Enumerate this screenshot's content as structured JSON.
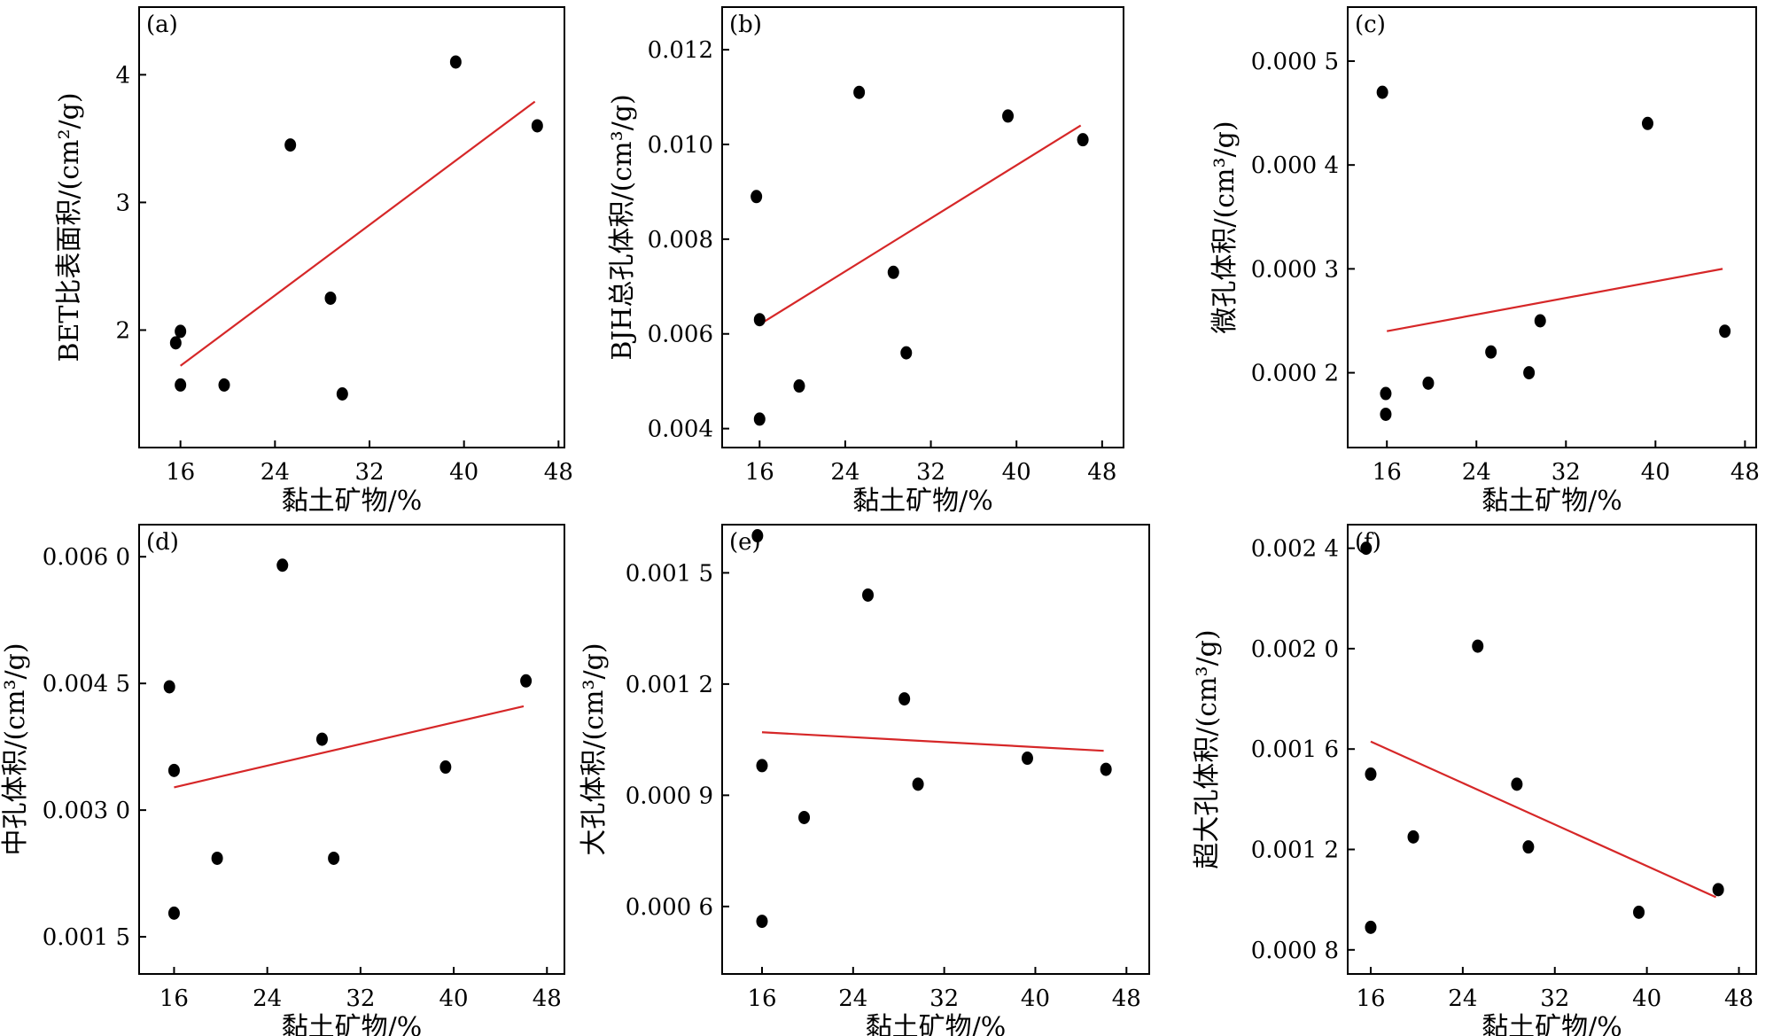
{
  "colors": {
    "points": "#000000",
    "fit_line": "#d62728",
    "frame": "#000000"
  },
  "chart_data": [
    {
      "panel": "(a)",
      "type": "scatter",
      "xlabel": "黏土矿物/%",
      "ylabel": "BET比表面积/(cm²/g)",
      "xticks": [
        16,
        24,
        32,
        40,
        48
      ],
      "xtick_labels": [
        "16",
        "24",
        "32",
        "40",
        "48"
      ],
      "yticks": [
        2,
        3,
        4
      ],
      "ytick_labels": [
        "2",
        "3",
        "4"
      ],
      "xlim": [
        12.5,
        48.5
      ],
      "ylim": [
        1.08,
        4.53
      ],
      "points": [
        [
          15.6,
          1.9
        ],
        [
          16.0,
          1.99
        ],
        [
          16.0,
          1.57
        ],
        [
          19.7,
          1.57
        ],
        [
          25.3,
          3.45
        ],
        [
          28.7,
          2.25
        ],
        [
          29.7,
          1.5
        ],
        [
          39.3,
          4.1
        ],
        [
          46.2,
          3.6
        ]
      ],
      "fit": [
        [
          16.0,
          1.72
        ],
        [
          46.0,
          3.79
        ]
      ]
    },
    {
      "panel": "(b)",
      "type": "scatter",
      "xlabel": "黏土矿物/%",
      "ylabel": "BJH总孔体积/(cm³/g)",
      "xticks": [
        16,
        24,
        32,
        40,
        48
      ],
      "xtick_labels": [
        "16",
        "24",
        "32",
        "40",
        "48"
      ],
      "yticks": [
        0.004,
        0.006,
        0.008,
        0.01,
        0.012
      ],
      "ytick_labels": [
        "0.004",
        "0.006",
        "0.008",
        "0.010",
        "0.012"
      ],
      "xlim": [
        12.5,
        50.0
      ],
      "ylim": [
        0.0036,
        0.0129
      ],
      "points": [
        [
          15.7,
          0.0089
        ],
        [
          16.0,
          0.0063
        ],
        [
          16.0,
          0.0042
        ],
        [
          19.7,
          0.0049
        ],
        [
          25.3,
          0.0111
        ],
        [
          28.5,
          0.0073
        ],
        [
          29.7,
          0.0056
        ],
        [
          39.2,
          0.0106
        ],
        [
          46.2,
          0.0101
        ]
      ],
      "fit": [
        [
          16.0,
          0.0062
        ],
        [
          46.0,
          0.0104
        ]
      ]
    },
    {
      "panel": "(c)",
      "type": "scatter",
      "xlabel": "黏土矿物/%",
      "ylabel": "微孔体积/(cm³/g)",
      "xticks": [
        16,
        24,
        32,
        40,
        48
      ],
      "xtick_labels": [
        "16",
        "24",
        "32",
        "40",
        "48"
      ],
      "yticks": [
        0.0002,
        0.0003,
        0.0004,
        0.0005
      ],
      "ytick_labels": [
        "0.000 2",
        "0.000 3",
        "0.000 4",
        "0.000 5"
      ],
      "xlim": [
        12.5,
        49.0
      ],
      "ylim": [
        0.000128,
        0.000552
      ],
      "points": [
        [
          15.6,
          0.00047
        ],
        [
          15.9,
          0.00018
        ],
        [
          15.9,
          0.00016
        ],
        [
          19.7,
          0.00019
        ],
        [
          25.3,
          0.00022
        ],
        [
          28.7,
          0.0002
        ],
        [
          29.7,
          0.00025
        ],
        [
          39.3,
          0.00044
        ],
        [
          46.2,
          0.00024
        ]
      ],
      "fit": [
        [
          16.0,
          0.00024
        ],
        [
          46.0,
          0.0003
        ]
      ]
    },
    {
      "panel": "(d)",
      "type": "scatter",
      "xlabel": "黏土矿物/%",
      "ylabel": "中孔体积/(cm³/g)",
      "xticks": [
        16,
        24,
        32,
        40,
        48
      ],
      "xtick_labels": [
        "16",
        "24",
        "32",
        "40",
        "48"
      ],
      "yticks": [
        0.0015,
        0.003,
        0.0045,
        0.006
      ],
      "ytick_labels": [
        "0.001 5",
        "0.003 0",
        "0.004 5",
        "0.006 0"
      ],
      "xlim": [
        13.0,
        49.5
      ],
      "ylim": [
        0.00106,
        0.00638
      ],
      "points": [
        [
          15.6,
          0.00446
        ],
        [
          16.0,
          0.00347
        ],
        [
          16.0,
          0.00178
        ],
        [
          19.7,
          0.00243
        ],
        [
          25.3,
          0.0059
        ],
        [
          28.7,
          0.00384
        ],
        [
          29.7,
          0.00243
        ],
        [
          39.3,
          0.00351
        ],
        [
          46.2,
          0.00453
        ]
      ],
      "fit": [
        [
          16.0,
          0.00327
        ],
        [
          46.0,
          0.00423
        ]
      ]
    },
    {
      "panel": "(e)",
      "type": "scatter",
      "xlabel": "黏土矿物/%",
      "ylabel": "大孔体积/(cm³/g)",
      "xticks": [
        16,
        24,
        32,
        40,
        48
      ],
      "xtick_labels": [
        "16",
        "24",
        "32",
        "40",
        "48"
      ],
      "yticks": [
        0.0006,
        0.0009,
        0.0012,
        0.0015
      ],
      "ytick_labels": [
        "0.000 6",
        "0.000 9",
        "0.001 2",
        "0.001 5"
      ],
      "xlim": [
        12.5,
        50.0
      ],
      "ylim": [
        0.000418,
        0.00163
      ],
      "points": [
        [
          15.6,
          0.0016
        ],
        [
          16.0,
          0.00098
        ],
        [
          16.0,
          0.00056
        ],
        [
          19.7,
          0.00084
        ],
        [
          25.3,
          0.00144
        ],
        [
          28.5,
          0.00116
        ],
        [
          29.7,
          0.00093
        ],
        [
          39.3,
          0.001
        ],
        [
          46.2,
          0.00097
        ]
      ],
      "fit": [
        [
          16.0,
          0.00107
        ],
        [
          46.0,
          0.00102
        ]
      ]
    },
    {
      "panel": "(f)",
      "type": "scatter",
      "xlabel": "黏土矿物/%",
      "ylabel": "超大孔体积/(cm³/g)",
      "xticks": [
        16,
        24,
        32,
        40,
        48
      ],
      "xtick_labels": [
        "16",
        "24",
        "32",
        "40",
        "48"
      ],
      "yticks": [
        0.0008,
        0.0012,
        0.0016,
        0.002,
        0.0024
      ],
      "ytick_labels": [
        "0.000 8",
        "0.001 2",
        "0.001 6",
        "0.002 0",
        "0.002 4"
      ],
      "xlim": [
        14.0,
        49.5
      ],
      "ylim": [
        0.000704,
        0.002494
      ],
      "points": [
        [
          15.6,
          0.0024
        ],
        [
          16.0,
          0.0015
        ],
        [
          16.0,
          0.00089
        ],
        [
          19.7,
          0.00125
        ],
        [
          25.3,
          0.00201
        ],
        [
          28.7,
          0.00146
        ],
        [
          29.7,
          0.00121
        ],
        [
          39.3,
          0.00095
        ],
        [
          46.2,
          0.00104
        ]
      ],
      "fit": [
        [
          16.0,
          0.00163
        ],
        [
          46.0,
          0.00101
        ]
      ]
    }
  ]
}
